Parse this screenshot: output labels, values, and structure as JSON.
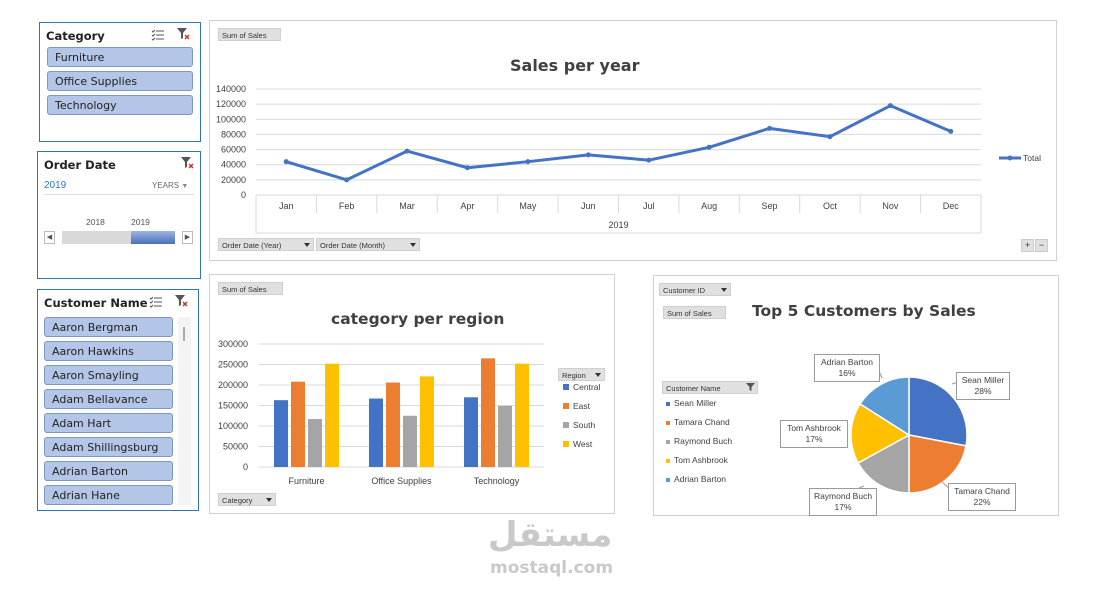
{
  "slicers": {
    "category": {
      "title": "Category",
      "items": [
        "Furniture",
        "Office Supplies",
        "Technology"
      ]
    },
    "order_date": {
      "title": "Order Date",
      "selected": "2019",
      "level": "YEARS",
      "years": [
        "2018",
        "2019"
      ]
    },
    "customer": {
      "title": "Customer Name",
      "items": [
        "Aaron Bergman",
        "Aaron Hawkins",
        "Aaron Smayling",
        "Adam Bellavance",
        "Adam Hart",
        "Adam Shillingsburg",
        "Adrian Barton",
        "Adrian Hane"
      ]
    }
  },
  "sales_chart": {
    "value_button": "Sum of Sales",
    "filter_buttons": [
      "Order Date (Year)",
      "Order Date (Month)"
    ],
    "zoom": [
      "+",
      "−"
    ]
  },
  "region_chart": {
    "value_button": "Sum of Sales",
    "axis_button": "Category",
    "legend_button": "Region"
  },
  "customer_chart": {
    "filter_button": "Customer ID",
    "value_button": "Sum of Sales",
    "legend_button": "Customer Name"
  },
  "watermark": {
    "arabic": "مستقل",
    "latin": "mostaql.com"
  },
  "colors": {
    "accent": "#4472c4",
    "orange": "#ed7d31",
    "gray": "#a5a5a5",
    "gold": "#ffc000",
    "lightblue": "#5b9bd5",
    "slicer_fill": "#b4c6e7"
  },
  "chart_data": [
    {
      "type": "line",
      "title": "Sales per year",
      "x": [
        "Jan",
        "Feb",
        "Mar",
        "Apr",
        "May",
        "Jun",
        "Jul",
        "Aug",
        "Sep",
        "Oct",
        "Nov",
        "Dec"
      ],
      "xgroup": "2019",
      "series": [
        {
          "name": "Total",
          "values": [
            44000,
            20000,
            58000,
            36000,
            44000,
            53000,
            46000,
            63000,
            88000,
            77000,
            118000,
            84000
          ]
        }
      ],
      "ylim": [
        0,
        140000
      ],
      "yticks": [
        0,
        20000,
        40000,
        60000,
        80000,
        100000,
        120000,
        140000
      ],
      "legend": "right",
      "grid": true
    },
    {
      "type": "bar",
      "title": "category per region",
      "categories": [
        "Furniture",
        "Office Supplies",
        "Technology"
      ],
      "series": [
        {
          "name": "Central",
          "values": [
            163000,
            167000,
            170000
          ]
        },
        {
          "name": "East",
          "values": [
            208000,
            206000,
            265000
          ]
        },
        {
          "name": "South",
          "values": [
            117000,
            125000,
            149000
          ]
        },
        {
          "name": "West",
          "values": [
            252000,
            221000,
            252000
          ]
        }
      ],
      "ylim": [
        0,
        300000
      ],
      "yticks": [
        0,
        50000,
        100000,
        150000,
        200000,
        250000,
        300000
      ],
      "legend": "right",
      "grid": true
    },
    {
      "type": "pie",
      "title": "Top 5 Customers by Sales",
      "labels": [
        "Sean Miller",
        "Tamara Chand",
        "Raymond Buch",
        "Tom Ashbrook",
        "Adrian Barton"
      ],
      "values": [
        28,
        22,
        17,
        17,
        16
      ],
      "percent_labels": [
        "28%",
        "22%",
        "17%",
        "17%",
        "16%"
      ],
      "legend": "left"
    }
  ]
}
